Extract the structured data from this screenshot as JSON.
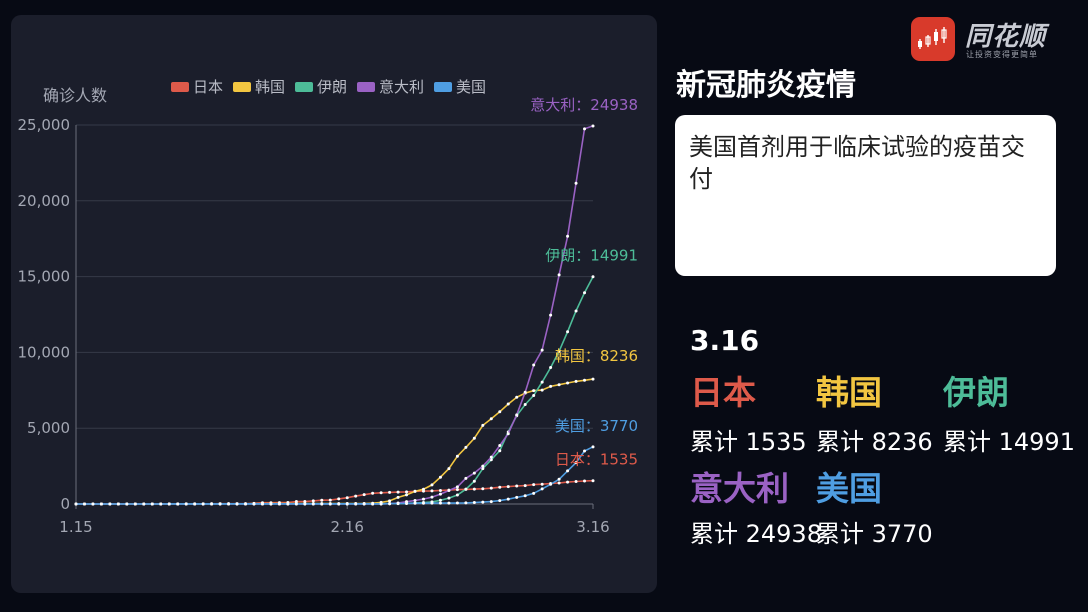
{
  "header": {
    "logo_name": "同花顺",
    "logo_slogan": "让投资变得更简单",
    "title": "新冠肺炎疫情"
  },
  "news": {
    "text": "美国首剂用于临床试验的疫苗交付"
  },
  "stats": {
    "date": "3.16",
    "countries": [
      {
        "name": "日本",
        "total_text": "累计 1535",
        "color": "#de5a4a"
      },
      {
        "name": "韩国",
        "total_text": "累计 8236",
        "color": "#f2c641"
      },
      {
        "name": "伊朗",
        "total_text": "累计 14991",
        "color": "#4dbc98"
      },
      {
        "name": "意大利",
        "total_text": "累计 24938",
        "color": "#9a62c4"
      },
      {
        "name": "美国",
        "total_text": "累计 3770",
        "color": "#4f9ee2"
      }
    ]
  },
  "chart_data": {
    "type": "line",
    "ylabel": "确诊人数",
    "ylim": [
      0,
      25000
    ],
    "yticks": [
      0,
      5000,
      10000,
      15000,
      20000,
      25000
    ],
    "ytick_labels": [
      "0",
      "5,000",
      "10,000",
      "15,000",
      "20,000",
      "25,000"
    ],
    "x": [
      "1.15",
      "1.16",
      "1.17",
      "1.18",
      "1.19",
      "1.20",
      "1.21",
      "1.22",
      "1.23",
      "1.24",
      "1.25",
      "1.26",
      "1.27",
      "1.28",
      "1.29",
      "1.30",
      "1.31",
      "2.1",
      "2.2",
      "2.3",
      "2.4",
      "2.5",
      "2.6",
      "2.7",
      "2.8",
      "2.9",
      "2.10",
      "2.11",
      "2.12",
      "2.13",
      "2.14",
      "2.15",
      "2.16",
      "2.17",
      "2.18",
      "2.19",
      "2.20",
      "2.21",
      "2.22",
      "2.23",
      "2.24",
      "2.25",
      "2.26",
      "2.27",
      "2.28",
      "2.29",
      "3.1",
      "3.2",
      "3.3",
      "3.4",
      "3.5",
      "3.6",
      "3.7",
      "3.8",
      "3.9",
      "3.10",
      "3.11",
      "3.12",
      "3.13",
      "3.14",
      "3.15",
      "3.16"
    ],
    "xtick_labels": [
      "1.15",
      "2.16",
      "3.16"
    ],
    "xtick_indices": [
      0,
      32,
      61
    ],
    "legend_position": "top",
    "grid": true,
    "series": [
      {
        "name": "日本",
        "color": "#de5a4a",
        "end_label": "日本：1535",
        "values": [
          0,
          0,
          0,
          0,
          0,
          0,
          0,
          1,
          1,
          1,
          2,
          3,
          4,
          6,
          8,
          12,
          15,
          20,
          20,
          20,
          20,
          45,
          86,
          86,
          90,
          96,
          161,
          163,
          203,
          251,
          259,
          338,
          414,
          520,
          616,
          705,
          739,
          767,
          783,
          796,
          838,
          851,
          862,
          894,
          919,
          947,
          961,
          981,
          1004,
          1045,
          1106,
          1150,
          1187,
          1215,
          1278,
          1306,
          1355,
          1384,
          1447,
          1484,
          1514,
          1535
        ]
      },
      {
        "name": "韩国",
        "color": "#f2c641",
        "end_label": "韩国：8236",
        "values": [
          0,
          0,
          0,
          0,
          0,
          0,
          0,
          1,
          1,
          2,
          2,
          3,
          4,
          4,
          4,
          4,
          11,
          12,
          15,
          15,
          16,
          19,
          23,
          24,
          24,
          25,
          27,
          28,
          28,
          28,
          28,
          28,
          29,
          30,
          31,
          51,
          104,
          204,
          433,
          602,
          833,
          977,
          1261,
          1766,
          2337,
          3150,
          3736,
          4335,
          5186,
          5621,
          6088,
          6593,
          7041,
          7314,
          7478,
          7513,
          7755,
          7869,
          7979,
          8086,
          8162,
          8236
        ]
      },
      {
        "name": "伊朗",
        "color": "#4dbc98",
        "end_label": "伊朗：14991",
        "values": [
          0,
          0,
          0,
          0,
          0,
          0,
          0,
          0,
          0,
          0,
          0,
          0,
          0,
          0,
          0,
          0,
          0,
          0,
          0,
          0,
          0,
          0,
          0,
          0,
          0,
          0,
          0,
          0,
          0,
          0,
          0,
          0,
          0,
          0,
          0,
          2,
          5,
          18,
          28,
          43,
          61,
          95,
          139,
          245,
          388,
          593,
          978,
          1501,
          2336,
          2922,
          3513,
          4747,
          5823,
          6566,
          7161,
          8042,
          9000,
          10075,
          11364,
          12729,
          13938,
          14991
        ]
      },
      {
        "name": "意大利",
        "color": "#9a62c4",
        "end_label": "意大利：24938",
        "values": [
          0,
          0,
          0,
          0,
          0,
          0,
          0,
          0,
          0,
          0,
          0,
          0,
          0,
          0,
          0,
          0,
          2,
          2,
          2,
          2,
          2,
          2,
          2,
          3,
          3,
          3,
          3,
          3,
          3,
          3,
          3,
          3,
          3,
          3,
          3,
          3,
          3,
          20,
          62,
          155,
          229,
          322,
          453,
          655,
          888,
          1128,
          1694,
          2036,
          2502,
          3089,
          3858,
          4636,
          5883,
          7375,
          9172,
          10149,
          12462,
          15113,
          17660,
          21157,
          24747,
          24938
        ]
      },
      {
        "name": "美国",
        "color": "#4f9ee2",
        "end_label": "美国：3770",
        "values": [
          0,
          0,
          0,
          0,
          0,
          0,
          1,
          1,
          1,
          2,
          2,
          5,
          5,
          5,
          5,
          6,
          7,
          8,
          11,
          11,
          12,
          12,
          12,
          12,
          12,
          12,
          13,
          13,
          14,
          14,
          15,
          15,
          15,
          15,
          15,
          15,
          15,
          35,
          35,
          35,
          53,
          53,
          57,
          60,
          60,
          62,
          75,
          100,
          124,
          158,
          221,
          319,
          435,
          541,
          704,
          994,
          1301,
          1630,
          2183,
          2726,
          3499,
          3770
        ]
      }
    ]
  }
}
